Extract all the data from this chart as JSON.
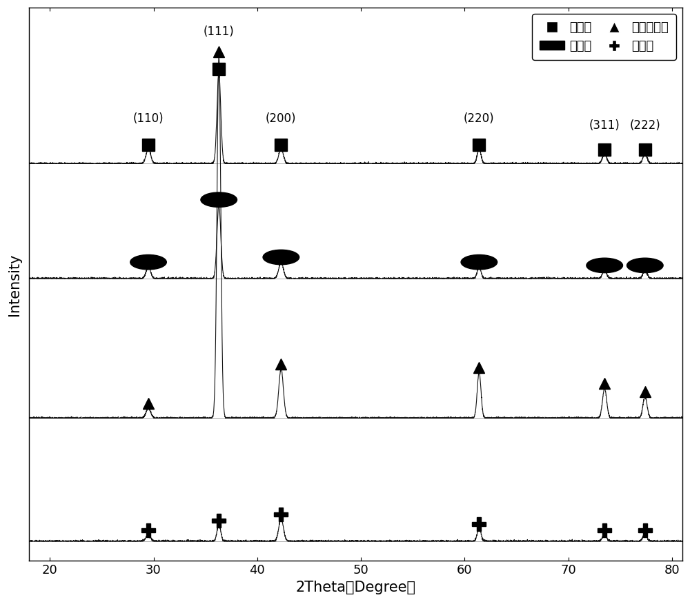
{
  "xlim": [
    18,
    81
  ],
  "xlabel": "2Theta（Degree）",
  "ylabel": "Intensity",
  "background_color": "#ffffff",
  "peak_positions": [
    29.5,
    36.3,
    42.3,
    61.4,
    73.5,
    77.4
  ],
  "peak_widths": [
    0.22,
    0.18,
    0.22,
    0.18,
    0.2,
    0.2
  ],
  "peak_heights_hollow_sphere": [
    0.09,
    0.55,
    0.09,
    0.09,
    0.06,
    0.06
  ],
  "peak_heights_cube": [
    0.07,
    0.45,
    0.1,
    0.07,
    0.05,
    0.05
  ],
  "peak_heights_hollow_cube": [
    0.06,
    2.2,
    0.3,
    0.28,
    0.18,
    0.13
  ],
  "peak_heights_octahedron": [
    0.04,
    0.1,
    0.14,
    0.08,
    0.04,
    0.04
  ],
  "offsets": [
    2.3,
    1.6,
    0.75,
    0.0
  ],
  "series_names": [
    "空心球",
    "立方体",
    "空心立方体",
    "八面体"
  ],
  "hkl_labels": [
    "(110)",
    "(111)",
    "(200)",
    "(220)",
    "(311)",
    "(222)"
  ],
  "hkl_x": [
    29.5,
    36.3,
    42.3,
    61.4,
    73.5,
    77.4
  ],
  "line_color": "#111111",
  "line_width": 0.8,
  "noise_level": 0.003,
  "figsize": [
    10.0,
    8.73
  ],
  "dpi": 100,
  "font_size_axis_label": 15,
  "font_size_tick": 13,
  "font_size_legend": 13,
  "font_size_hkl": 12,
  "marker_y_hollow_sphere": [
    0.09,
    0.55,
    0.09,
    0.09,
    0.06,
    0.06
  ],
  "marker_y_cube": [
    0.07,
    0.45,
    0.1,
    0.07,
    0.05,
    0.05
  ],
  "marker_y_hollow_cube": [
    0.06,
    2.2,
    0.3,
    0.28,
    0.18,
    0.13
  ],
  "marker_y_octahedron": [
    0.04,
    0.1,
    0.14,
    0.08,
    0.04,
    0.04
  ],
  "xticks": [
    20,
    30,
    40,
    50,
    60,
    70,
    80
  ]
}
